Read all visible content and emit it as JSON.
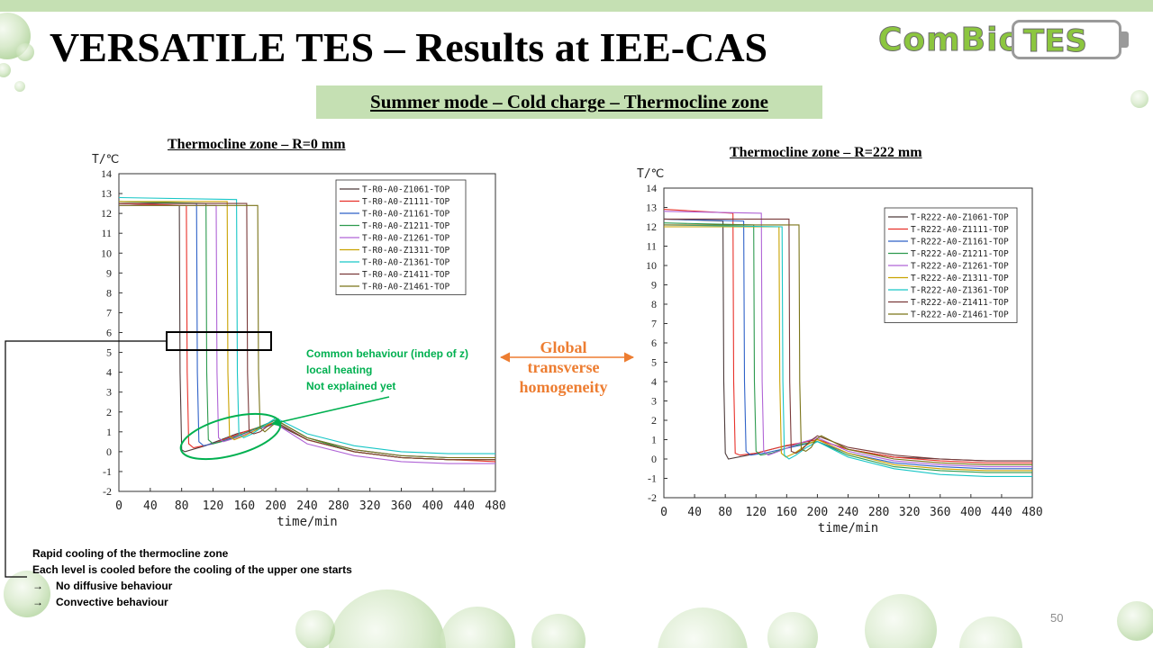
{
  "slide": {
    "title": "VERSATILE TES – Results at IEE-CAS",
    "subtitle": "Summer mode – Cold charge – Thermocline zone",
    "page_number": "50",
    "logo": {
      "left": "ComBio",
      "right": "TES"
    },
    "middle_label": [
      "Global",
      "transverse",
      "homogeneity"
    ],
    "green_note": [
      "Common behaviour (indep of z)",
      "local heating",
      "Not explained yet"
    ],
    "bottom_notes": [
      "Rapid cooling of the thermocline zone",
      "Each level is cooled before the cooling of the upper one starts",
      "No diffusive behaviour",
      "Convective behaviour"
    ],
    "arrow_glyph": "→"
  },
  "colors": {
    "accent_green": "#00b050",
    "banner_green": "#c5e0b3",
    "orange": "#ed7d31",
    "series": [
      "#4d3b3b",
      "#e8312a",
      "#2f62c8",
      "#2d9a4e",
      "#b064d6",
      "#c9a200",
      "#17c6c6",
      "#7a3a3a",
      "#7a7318"
    ]
  },
  "chart_data": [
    {
      "type": "line",
      "title": "Thermocline zone – R=0 mm",
      "xlabel": "time/min",
      "ylabel": "T/℃",
      "xlim": [
        0,
        480
      ],
      "ylim": [
        -2,
        14
      ],
      "xticks": [
        0,
        40,
        80,
        120,
        160,
        200,
        240,
        280,
        320,
        360,
        400,
        440,
        480
      ],
      "yticks": [
        -2,
        -1,
        0,
        1,
        2,
        3,
        4,
        5,
        6,
        7,
        8,
        9,
        10,
        11,
        12,
        13,
        14
      ],
      "legend_position": "top-right",
      "series": [
        {
          "name": "T-R0-A0-Z1061-TOP",
          "x": [
            0,
            77,
            78,
            80,
            84,
            110,
            150,
            200,
            240,
            300,
            360,
            420,
            480
          ],
          "y": [
            12.5,
            12.4,
            4.0,
            0.1,
            0.0,
            0.3,
            0.9,
            1.4,
            0.6,
            0.0,
            -0.3,
            -0.4,
            -0.4
          ]
        },
        {
          "name": "T-R0-A0-Z1111-TOP",
          "x": [
            0,
            86,
            87,
            89,
            95,
            120,
            160,
            200,
            240,
            300,
            360,
            420,
            480
          ],
          "y": [
            12.5,
            12.4,
            4.0,
            0.4,
            0.2,
            0.4,
            1.0,
            1.5,
            0.6,
            0.0,
            -0.3,
            -0.4,
            -0.5
          ]
        },
        {
          "name": "T-R0-A0-Z1161-TOP",
          "x": [
            0,
            99,
            100,
            102,
            108,
            130,
            165,
            200,
            240,
            300,
            360,
            420,
            480
          ],
          "y": [
            12.6,
            12.5,
            4.0,
            0.5,
            0.3,
            0.5,
            1.0,
            1.6,
            0.7,
            0.1,
            -0.2,
            -0.3,
            -0.3
          ]
        },
        {
          "name": "T-R0-A0-Z1211-TOP",
          "x": [
            0,
            111,
            112,
            114,
            120,
            140,
            170,
            200,
            240,
            300,
            360,
            420,
            480
          ],
          "y": [
            12.6,
            12.5,
            4.0,
            0.6,
            0.4,
            0.6,
            1.1,
            1.6,
            0.7,
            0.0,
            -0.3,
            -0.4,
            -0.4
          ]
        },
        {
          "name": "T-R0-A0-Z1261-TOP",
          "x": [
            0,
            124,
            125,
            127,
            133,
            150,
            175,
            200,
            240,
            300,
            360,
            420,
            480
          ],
          "y": [
            12.4,
            12.4,
            4.0,
            0.7,
            0.5,
            0.7,
            1.1,
            1.4,
            0.4,
            -0.2,
            -0.5,
            -0.6,
            -0.6
          ]
        },
        {
          "name": "T-R0-A0-Z1311-TOP",
          "x": [
            0,
            138,
            139,
            141,
            147,
            160,
            180,
            200,
            240,
            300,
            360,
            420,
            480
          ],
          "y": [
            12.6,
            12.6,
            4.0,
            0.8,
            0.6,
            0.8,
            1.2,
            1.5,
            0.6,
            0.0,
            -0.3,
            -0.4,
            -0.4
          ]
        },
        {
          "name": "T-R0-A0-Z1361-TOP",
          "x": [
            0,
            150,
            151,
            153,
            159,
            170,
            185,
            200,
            240,
            300,
            360,
            420,
            480
          ],
          "y": [
            12.8,
            12.7,
            4.0,
            0.9,
            0.7,
            0.9,
            1.3,
            1.7,
            0.9,
            0.3,
            0.0,
            -0.1,
            -0.1
          ]
        },
        {
          "name": "T-R0-A0-Z1411-TOP",
          "x": [
            0,
            163,
            164,
            166,
            172,
            180,
            190,
            200,
            240,
            300,
            360,
            420,
            480
          ],
          "y": [
            12.5,
            12.5,
            4.0,
            1.0,
            0.9,
            1.0,
            1.3,
            1.5,
            0.6,
            0.0,
            -0.3,
            -0.4,
            -0.4
          ]
        },
        {
          "name": "T-R0-A0-Z1461-TOP",
          "x": [
            0,
            177,
            178,
            180,
            186,
            192,
            198,
            205,
            240,
            300,
            360,
            420,
            480
          ],
          "y": [
            12.4,
            12.4,
            4.0,
            1.2,
            1.0,
            1.2,
            1.4,
            1.5,
            0.7,
            0.1,
            -0.2,
            -0.3,
            -0.3
          ]
        }
      ]
    },
    {
      "type": "line",
      "title": "Thermocline zone – R=222 mm",
      "xlabel": "time/min",
      "ylabel": "T/℃",
      "xlim": [
        0,
        480
      ],
      "ylim": [
        -2,
        14
      ],
      "xticks": [
        0,
        40,
        80,
        120,
        160,
        200,
        240,
        280,
        320,
        360,
        400,
        440,
        480
      ],
      "yticks": [
        -2,
        -1,
        0,
        1,
        2,
        3,
        4,
        5,
        6,
        7,
        8,
        9,
        10,
        11,
        12,
        13,
        14
      ],
      "legend_position": "top-right",
      "series": [
        {
          "name": "T-R222-A0-Z1061-TOP",
          "x": [
            0,
            77,
            78,
            80,
            84,
            110,
            150,
            200,
            240,
            300,
            360,
            420,
            480
          ],
          "y": [
            12.4,
            12.3,
            4.0,
            0.3,
            0.0,
            0.2,
            0.6,
            1.0,
            0.5,
            0.1,
            0.0,
            -0.1,
            -0.1
          ]
        },
        {
          "name": "T-R222-A0-Z1111-TOP",
          "x": [
            0,
            90,
            91,
            93,
            99,
            120,
            160,
            200,
            240,
            300,
            360,
            420,
            480
          ],
          "y": [
            12.9,
            12.7,
            4.0,
            0.3,
            0.2,
            0.3,
            0.7,
            1.0,
            0.5,
            0.1,
            -0.1,
            -0.2,
            -0.2
          ]
        },
        {
          "name": "T-R222-A0-Z1161-TOP",
          "x": [
            0,
            104,
            105,
            107,
            113,
            130,
            165,
            200,
            240,
            300,
            360,
            420,
            480
          ],
          "y": [
            12.4,
            12.3,
            4.0,
            0.4,
            0.2,
            0.3,
            0.6,
            0.9,
            0.3,
            -0.2,
            -0.4,
            -0.5,
            -0.5
          ]
        },
        {
          "name": "T-R222-A0-Z1211-TOP",
          "x": [
            0,
            117,
            118,
            120,
            126,
            140,
            170,
            200,
            240,
            300,
            360,
            420,
            480
          ],
          "y": [
            12.2,
            12.1,
            4.0,
            0.4,
            0.2,
            0.3,
            0.7,
            0.9,
            0.2,
            -0.4,
            -0.6,
            -0.7,
            -0.7
          ]
        },
        {
          "name": "T-R222-A0-Z1261-TOP",
          "x": [
            0,
            127,
            128,
            130,
            136,
            150,
            175,
            200,
            240,
            300,
            360,
            420,
            480
          ],
          "y": [
            12.8,
            12.7,
            4.0,
            0.4,
            0.2,
            0.4,
            0.8,
            1.1,
            0.4,
            -0.1,
            -0.3,
            -0.4,
            -0.4
          ]
        },
        {
          "name": "T-R222-A0-Z1311-TOP",
          "x": [
            0,
            150,
            151,
            153,
            159,
            170,
            185,
            200,
            240,
            300,
            360,
            420,
            480
          ],
          "y": [
            12.0,
            12.0,
            4.0,
            0.3,
            0.1,
            0.3,
            0.7,
            1.0,
            0.3,
            -0.3,
            -0.5,
            -0.6,
            -0.6
          ]
        },
        {
          "name": "T-R222-A0-Z1361-TOP",
          "x": [
            0,
            154,
            155,
            157,
            163,
            172,
            186,
            200,
            240,
            300,
            360,
            420,
            480
          ],
          "y": [
            12.1,
            12.0,
            4.0,
            0.2,
            0.0,
            0.2,
            0.6,
            0.9,
            0.1,
            -0.5,
            -0.8,
            -0.9,
            -0.9
          ]
        },
        {
          "name": "T-R222-A0-Z1411-TOP",
          "x": [
            0,
            163,
            164,
            166,
            172,
            180,
            190,
            200,
            240,
            300,
            360,
            420,
            480
          ],
          "y": [
            12.4,
            12.4,
            4.0,
            0.4,
            0.3,
            0.5,
            0.9,
            1.2,
            0.6,
            0.2,
            0.0,
            -0.1,
            -0.1
          ]
        },
        {
          "name": "T-R222-A0-Z1461-TOP",
          "x": [
            0,
            176,
            177,
            179,
            185,
            192,
            198,
            205,
            240,
            300,
            360,
            420,
            480
          ],
          "y": [
            12.1,
            12.1,
            4.0,
            0.5,
            0.4,
            0.6,
            1.0,
            1.2,
            0.5,
            0.0,
            -0.2,
            -0.3,
            -0.3
          ]
        }
      ]
    }
  ]
}
